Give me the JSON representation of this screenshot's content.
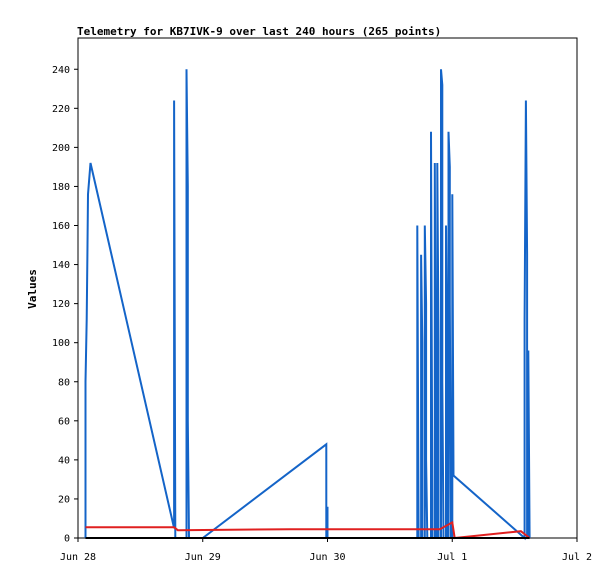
{
  "chart_data": {
    "type": "line",
    "title": "Telemetry for KB7IVK-9 over last 240 hours (265 points)",
    "ylabel": "Values",
    "xlabel": "",
    "xlim": [
      0,
      4
    ],
    "ylim": [
      0,
      256
    ],
    "x_ticks": [
      {
        "value": 0,
        "label": "Jun 28"
      },
      {
        "value": 1,
        "label": "Jun 29"
      },
      {
        "value": 2,
        "label": "Jun 30"
      },
      {
        "value": 3,
        "label": "Jul 1"
      },
      {
        "value": 4,
        "label": "Jul 2"
      }
    ],
    "y_ticks": [
      0,
      20,
      40,
      60,
      80,
      100,
      120,
      140,
      160,
      180,
      200,
      220,
      240
    ],
    "grid": false,
    "legend": "none",
    "x_unit": "days since Jun 28",
    "series": [
      {
        "color": "#1464c8",
        "points": [
          [
            0.06,
            0
          ],
          [
            0.06,
            80
          ],
          [
            0.07,
            112
          ],
          [
            0.075,
            145
          ],
          [
            0.08,
            176
          ],
          [
            0.1,
            192
          ],
          [
            0.77,
            5
          ],
          [
            0.77,
            224
          ],
          [
            0.78,
            0
          ],
          [
            0.87,
            0
          ],
          [
            0.87,
            240
          ],
          [
            0.88,
            180
          ],
          [
            0.88,
            60
          ],
          [
            0.89,
            0
          ],
          [
            1.0,
            0
          ],
          [
            1.99,
            48
          ],
          [
            1.99,
            0
          ],
          [
            2.0,
            16
          ],
          [
            2.0,
            0
          ],
          [
            2.72,
            0
          ],
          [
            2.72,
            160
          ],
          [
            2.73,
            0
          ],
          [
            2.75,
            0
          ],
          [
            2.75,
            145
          ],
          [
            2.76,
            100
          ],
          [
            2.76,
            0
          ],
          [
            2.78,
            0
          ],
          [
            2.78,
            160
          ],
          [
            2.79,
            120
          ],
          [
            2.79,
            40
          ],
          [
            2.8,
            0
          ],
          [
            2.83,
            0
          ],
          [
            2.83,
            208
          ],
          [
            2.84,
            20
          ],
          [
            2.84,
            0
          ],
          [
            2.86,
            0
          ],
          [
            2.86,
            192
          ],
          [
            2.87,
            32
          ],
          [
            2.87,
            0
          ],
          [
            2.88,
            0
          ],
          [
            2.88,
            192
          ],
          [
            2.89,
            100
          ],
          [
            2.89,
            0
          ],
          [
            2.91,
            0
          ],
          [
            2.91,
            240
          ],
          [
            2.92,
            232
          ],
          [
            2.92,
            80
          ],
          [
            2.93,
            0
          ],
          [
            2.95,
            0
          ],
          [
            2.95,
            160
          ],
          [
            2.96,
            80
          ],
          [
            2.96,
            0
          ],
          [
            2.97,
            0
          ],
          [
            2.97,
            208
          ],
          [
            2.98,
            190
          ],
          [
            2.98,
            120
          ],
          [
            2.99,
            0
          ],
          [
            3.0,
            0
          ],
          [
            3.0,
            176
          ],
          [
            3.01,
            32
          ],
          [
            3.58,
            0
          ],
          [
            3.58,
            112
          ],
          [
            3.59,
            224
          ],
          [
            3.6,
            145
          ],
          [
            3.6,
            0
          ],
          [
            3.61,
            0
          ],
          [
            3.61,
            96
          ],
          [
            3.62,
            0
          ]
        ]
      },
      {
        "color": "#e02020",
        "points": [
          [
            0.06,
            5.5
          ],
          [
            0.77,
            5.5
          ],
          [
            0.8,
            4
          ],
          [
            1.7,
            4.5
          ],
          [
            2.9,
            4.5
          ],
          [
            3.0,
            8
          ],
          [
            3.02,
            0
          ],
          [
            3.55,
            3.5
          ],
          [
            3.62,
            0
          ]
        ]
      },
      {
        "color": "#000000",
        "points": [
          [
            0.06,
            0
          ],
          [
            3.62,
            0
          ]
        ]
      }
    ]
  }
}
